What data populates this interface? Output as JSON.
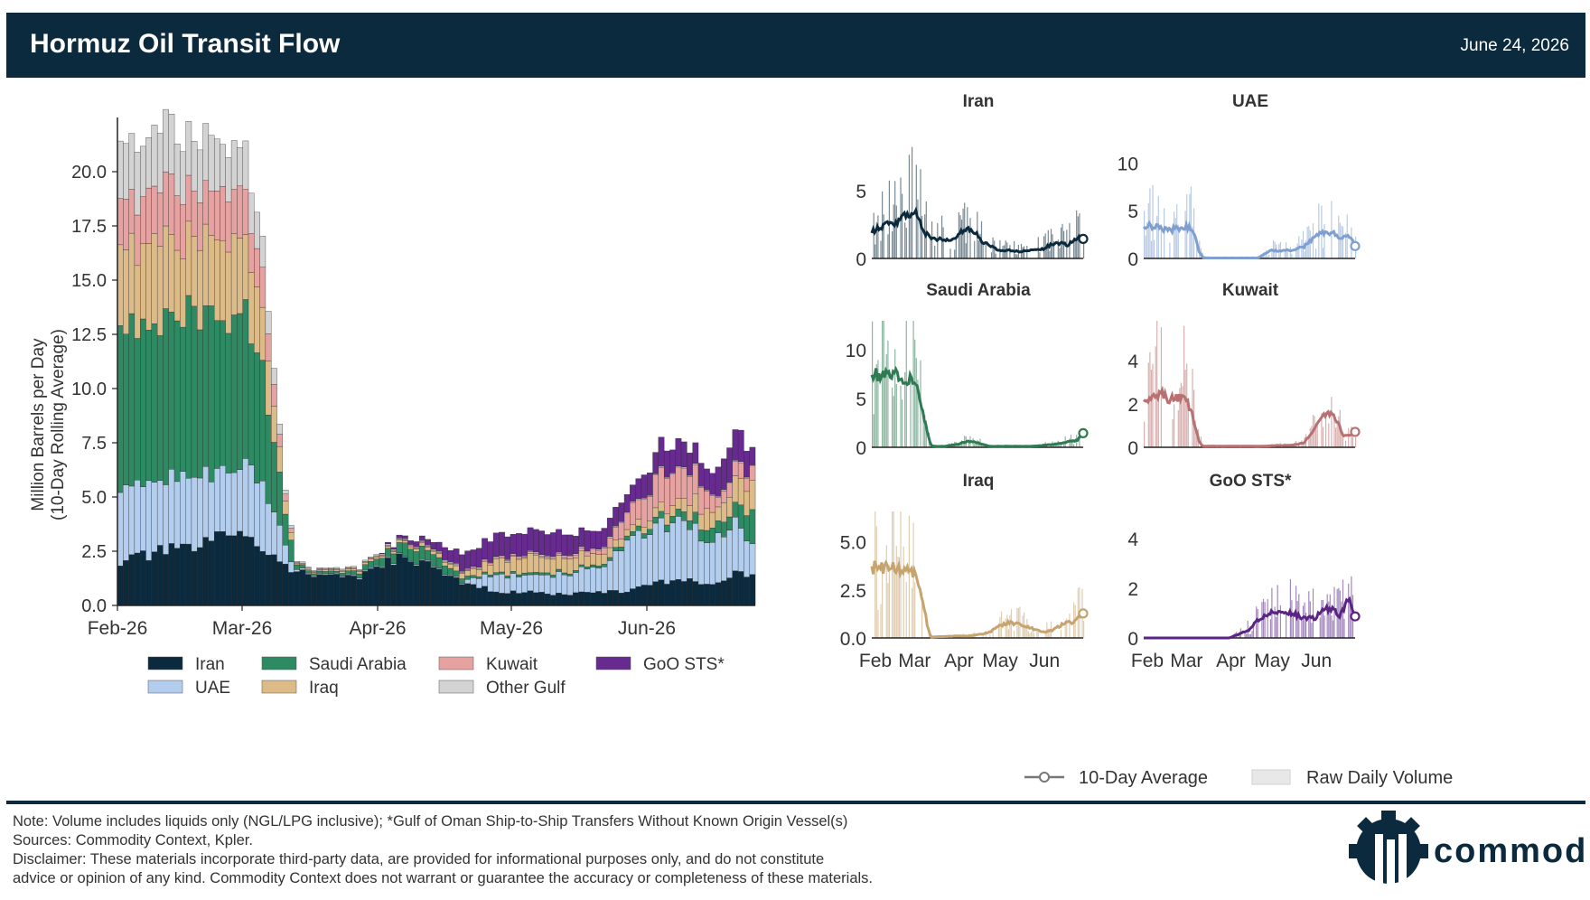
{
  "header": {
    "title": "Hormuz Oil Transit Flow",
    "date": "June 24, 2026"
  },
  "colors": {
    "Iran": "#0c2a3d",
    "UAE": "#b3cdee",
    "Saudi Arabia": "#2e8a62",
    "Iraq": "#dcbb88",
    "Kuwait": "#e6a1a1",
    "Other Gulf": "#d3d3d3",
    "GoO STS*": "#672a8e",
    "header": "#0c2a3d"
  },
  "chart_data": [
    {
      "type": "bar",
      "stacked": true,
      "ylabel": [
        "Million Barrels per Day",
        "(10-Day Rolling Average)"
      ],
      "ylim": [
        0,
        22.5
      ],
      "yticks": [
        "0.0",
        "2.5",
        "5.0",
        "7.5",
        "10.0",
        "12.5",
        "15.0",
        "17.5",
        "20.0"
      ],
      "xticks": [
        "Feb-26",
        "Mar-26",
        "Apr-26",
        "May-26",
        "Jun-26"
      ],
      "legend_position": "bottom",
      "series": [
        {
          "name": "Iran",
          "anchors": [
            [
              0,
              2.0
            ],
            [
              3,
              2.2
            ],
            [
              8,
              2.5
            ],
            [
              11,
              2.6
            ],
            [
              14,
              2.7
            ],
            [
              19,
              3.3
            ],
            [
              22,
              3.5
            ],
            [
              25,
              2.8
            ],
            [
              28,
              1.9
            ],
            [
              30,
              1.7
            ],
            [
              33,
              1.4
            ],
            [
              38,
              1.4
            ],
            [
              42,
              1.3
            ],
            [
              45,
              1.6
            ],
            [
              48,
              2.1
            ],
            [
              51,
              2.2
            ],
            [
              55,
              1.8
            ],
            [
              58,
              1.2
            ],
            [
              62,
              1.0
            ],
            [
              66,
              0.6
            ],
            [
              72,
              0.6
            ],
            [
              78,
              0.5
            ],
            [
              84,
              0.6
            ],
            [
              90,
              0.7
            ],
            [
              95,
              1.1
            ],
            [
              100,
              1.1
            ],
            [
              103,
              1.0
            ],
            [
              105,
              1.2
            ],
            [
              108,
              1.5
            ],
            [
              111,
              1.5
            ]
          ]
        },
        {
          "name": "UAE",
          "anchors": [
            [
              0,
              3.5
            ],
            [
              3,
              3.4
            ],
            [
              8,
              3.2
            ],
            [
              11,
              3.0
            ],
            [
              14,
              3.0
            ],
            [
              19,
              3.2
            ],
            [
              22,
              3.3
            ],
            [
              25,
              3.1
            ],
            [
              27,
              2.2
            ],
            [
              29,
              0.8
            ],
            [
              31,
              0.1
            ],
            [
              33,
              0.05
            ],
            [
              60,
              0.05
            ],
            [
              63,
              0.4
            ],
            [
              66,
              0.8
            ],
            [
              72,
              0.8
            ],
            [
              78,
              0.9
            ],
            [
              84,
              1.2
            ],
            [
              90,
              2.3
            ],
            [
              95,
              2.8
            ],
            [
              100,
              2.6
            ],
            [
              103,
              2.0
            ],
            [
              105,
              2.2
            ],
            [
              108,
              2.4
            ],
            [
              111,
              1.4
            ]
          ]
        },
        {
          "name": "Saudi Arabia",
          "anchors": [
            [
              0,
              7.3
            ],
            [
              3,
              7.4
            ],
            [
              8,
              7.5
            ],
            [
              11,
              7.5
            ],
            [
              14,
              7.3
            ],
            [
              19,
              7.0
            ],
            [
              22,
              6.5
            ],
            [
              25,
              5.5
            ],
            [
              27,
              3.5
            ],
            [
              29,
              1.6
            ],
            [
              31,
              0.2
            ],
            [
              33,
              0.1
            ],
            [
              38,
              0.1
            ],
            [
              45,
              0.3
            ],
            [
              48,
              0.5
            ],
            [
              51,
              0.6
            ],
            [
              55,
              0.5
            ],
            [
              58,
              0.3
            ],
            [
              62,
              0.1
            ],
            [
              84,
              0.1
            ],
            [
              90,
              0.2
            ],
            [
              95,
              0.3
            ],
            [
              100,
              0.4
            ],
            [
              103,
              0.6
            ],
            [
              105,
              0.6
            ],
            [
              108,
              0.7
            ],
            [
              111,
              1.6
            ]
          ]
        },
        {
          "name": "Iraq",
          "anchors": [
            [
              0,
              3.7
            ],
            [
              3,
              3.6
            ],
            [
              8,
              3.7
            ],
            [
              11,
              3.6
            ],
            [
              14,
              3.6
            ],
            [
              19,
              3.4
            ],
            [
              22,
              3.3
            ],
            [
              25,
              2.8
            ],
            [
              27,
              1.9
            ],
            [
              29,
              0.7
            ],
            [
              31,
              0.05
            ],
            [
              45,
              0.1
            ],
            [
              51,
              0.1
            ],
            [
              58,
              0.2
            ],
            [
              62,
              0.3
            ],
            [
              66,
              0.6
            ],
            [
              72,
              0.8
            ],
            [
              78,
              0.7
            ],
            [
              84,
              0.5
            ],
            [
              90,
              0.3
            ],
            [
              95,
              0.4
            ],
            [
              100,
              0.7
            ],
            [
              103,
              0.9
            ],
            [
              105,
              0.7
            ],
            [
              108,
              1.1
            ],
            [
              111,
              1.3
            ]
          ]
        },
        {
          "name": "Kuwait",
          "anchors": [
            [
              0,
              2.2
            ],
            [
              3,
              2.3
            ],
            [
              8,
              2.5
            ],
            [
              11,
              2.4
            ],
            [
              14,
              2.2
            ],
            [
              19,
              2.3
            ],
            [
              22,
              2.2
            ],
            [
              25,
              1.7
            ],
            [
              27,
              0.9
            ],
            [
              29,
              0.3
            ],
            [
              31,
              0.05
            ],
            [
              62,
              0.05
            ],
            [
              78,
              0.1
            ],
            [
              84,
              0.2
            ],
            [
              90,
              0.9
            ],
            [
              95,
              1.5
            ],
            [
              100,
              1.5
            ],
            [
              103,
              0.9
            ],
            [
              105,
              0.5
            ],
            [
              108,
              0.6
            ],
            [
              111,
              0.7
            ]
          ]
        },
        {
          "name": "Other Gulf",
          "anchors": [
            [
              0,
              2.5
            ],
            [
              3,
              2.7
            ],
            [
              8,
              2.6
            ],
            [
              11,
              2.4
            ],
            [
              14,
              2.4
            ],
            [
              19,
              2.2
            ],
            [
              22,
              2.0
            ],
            [
              25,
              1.5
            ],
            [
              27,
              0.8
            ],
            [
              29,
              0.2
            ],
            [
              31,
              0.05
            ],
            [
              111,
              0.05
            ]
          ]
        },
        {
          "name": "GoO STS*",
          "anchors": [
            [
              0,
              0.0
            ],
            [
              45,
              0.0
            ],
            [
              48,
              0.1
            ],
            [
              55,
              0.3
            ],
            [
              58,
              0.6
            ],
            [
              62,
              0.8
            ],
            [
              66,
              1.0
            ],
            [
              72,
              1.0
            ],
            [
              78,
              1.0
            ],
            [
              84,
              0.8
            ],
            [
              90,
              0.8
            ],
            [
              95,
              1.2
            ],
            [
              100,
              1.1
            ],
            [
              103,
              0.9
            ],
            [
              105,
              1.2
            ],
            [
              108,
              1.6
            ],
            [
              111,
              0.9
            ]
          ]
        }
      ]
    }
  ],
  "small_multiples": [
    {
      "name": "Iran",
      "yticks": [
        "0",
        "5"
      ],
      "ymax": 8.8,
      "xticks": []
    },
    {
      "name": "UAE",
      "yticks": [
        "0",
        "5",
        "10"
      ],
      "ymax": 12.5,
      "xticks": []
    },
    {
      "name": "Saudi Arabia",
      "yticks": [
        "0",
        "5",
        "10"
      ],
      "ymax": 12.2,
      "xticks": []
    },
    {
      "name": "Kuwait",
      "yticks": [
        "0",
        "2",
        "4"
      ],
      "ymax": 5.5,
      "xticks": []
    },
    {
      "name": "Iraq",
      "yticks": [
        "0.0",
        "2.5",
        "5.0"
      ],
      "ymax": 6.2,
      "xticks": [
        "Feb",
        "Mar",
        "Apr",
        "May",
        "Jun"
      ]
    },
    {
      "name": "GoO STS*",
      "yticks": [
        "0",
        "2",
        "4"
      ],
      "ymax": 4.8,
      "xticks": [
        "Feb",
        "Mar",
        "Apr",
        "May",
        "Jun"
      ]
    }
  ],
  "small_legend": {
    "avg": "10-Day Average",
    "raw": "Raw Daily Volume"
  },
  "footer": {
    "note": "Note: Volume includes liquids only (NGL/LPG inclusive); *Gulf of Oman Ship-to-Ship Transfers Without Known Origin Vessel(s)",
    "sources": "Sources: Commodity Context, Kpler.",
    "disclaimer1": "Disclaimer: These materials incorporate third-party data, are provided for informational purposes only, and do not constitute",
    "disclaimer2": "advice or opinion of any kind. Commodity Context does not warrant or guarantee the accuracy or completeness of these materials."
  },
  "logo": {
    "text": "commodity"
  }
}
